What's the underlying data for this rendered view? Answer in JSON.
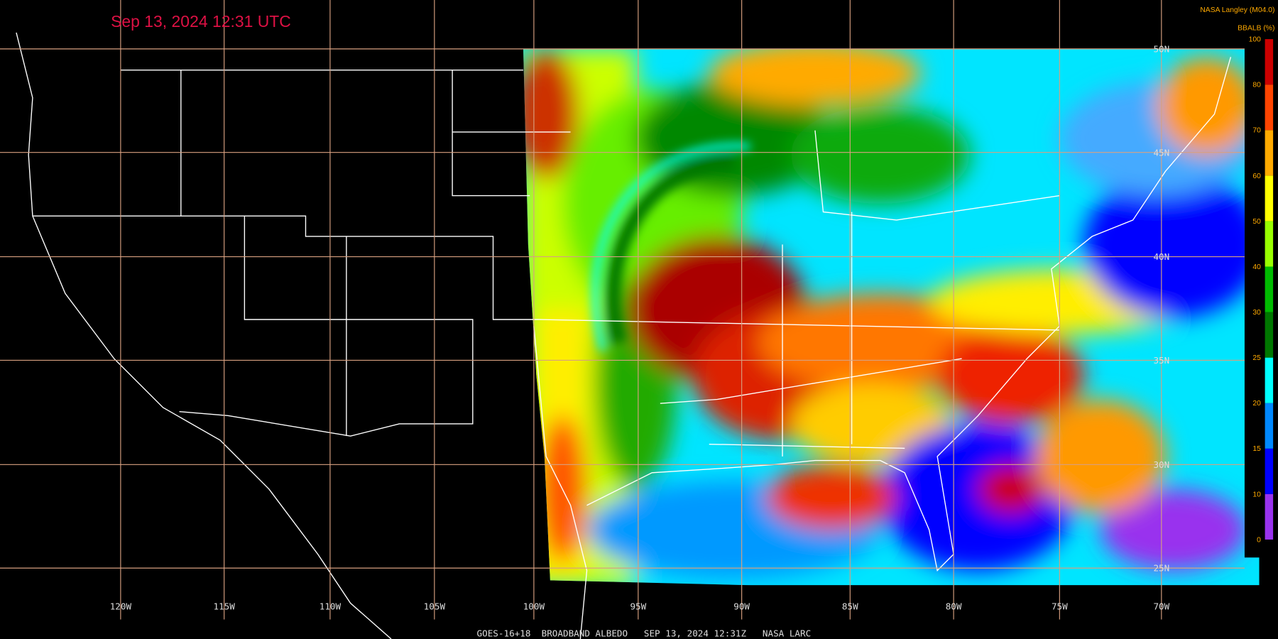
{
  "header": {
    "timestamp": "Sep 13, 2024 12:31 UTC",
    "source": "NASA Langley (M04.0)"
  },
  "colorbar": {
    "title": "BBALB (%)",
    "ticks": [
      "0",
      "10",
      "15",
      "20",
      "25",
      "30",
      "40",
      "50",
      "60",
      "70",
      "80",
      "100"
    ],
    "colors": [
      "#9933ee",
      "#0000ff",
      "#0088ff",
      "#00ffff",
      "#007700",
      "#00bb00",
      "#99ff00",
      "#ffff00",
      "#ffaa00",
      "#ff4400",
      "#cc0000"
    ]
  },
  "grid": {
    "longitudes": [
      "120W",
      "115W",
      "110W",
      "105W",
      "100W",
      "95W",
      "90W",
      "85W",
      "80W",
      "75W",
      "70W"
    ],
    "latitudes": [
      "50N",
      "45N",
      "40N",
      "35N",
      "30N",
      "25N"
    ]
  },
  "footer": "GOES-16+18  BROADBAND ALBEDO   SEP 13, 2024 12:31Z   NASA LARC"
}
